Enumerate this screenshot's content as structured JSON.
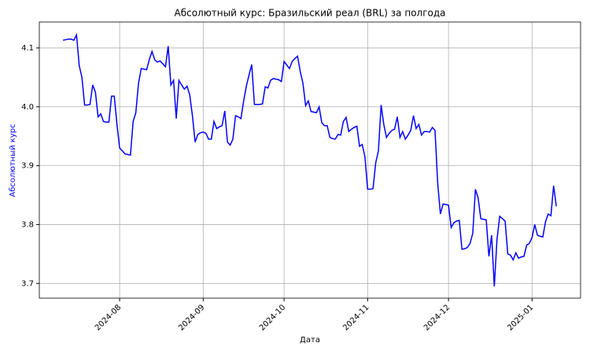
{
  "chart_data": {
    "type": "line",
    "title": "Абсолютный курс: Бразильский реал (BRL) за полгода",
    "xlabel": "Дата",
    "ylabel": "Абсолютный курс",
    "color": "#0000ff",
    "label_color": "#0000ff",
    "grid": true,
    "xlim": [
      -8.8,
      192
    ],
    "ylim": [
      3.675,
      4.144
    ],
    "xticks": [
      {
        "value": 21,
        "label": "2024-08"
      },
      {
        "value": 52,
        "label": "2024-09"
      },
      {
        "value": 82,
        "label": "2024-10"
      },
      {
        "value": 113,
        "label": "2024-11"
      },
      {
        "value": 143,
        "label": "2024-12"
      },
      {
        "value": 174,
        "label": "2025-01"
      }
    ],
    "yticks": [
      3.7,
      3.8,
      3.9,
      {
        "value": 4,
        "label": "4.0"
      },
      4.1
    ],
    "values": [
      4.113,
      4.114,
      4.115,
      4.115,
      4.113,
      4.122,
      4.07,
      4.05,
      4.003,
      4.003,
      4.004,
      4.037,
      4.025,
      3.983,
      3.988,
      3.975,
      3.974,
      3.974,
      4.018,
      4.018,
      3.97,
      3.93,
      3.925,
      3.92,
      3.919,
      3.918,
      3.975,
      3.99,
      4.04,
      4.065,
      4.064,
      4.063,
      4.08,
      4.094,
      4.08,
      4.076,
      4.078,
      4.073,
      4.068,
      4.103,
      4.037,
      4.045,
      3.98,
      4.045,
      4.037,
      4.03,
      4.035,
      4.02,
      3.985,
      3.94,
      3.953,
      3.956,
      3.957,
      3.955,
      3.945,
      3.945,
      3.975,
      3.963,
      3.966,
      3.968,
      3.993,
      3.94,
      3.935,
      3.945,
      3.985,
      3.983,
      3.98,
      4.01,
      4.035,
      4.054,
      4.072,
      4.004,
      4.004,
      4.004,
      4.005,
      4.034,
      4.032,
      4.045,
      4.048,
      4.047,
      4.046,
      4.043,
      4.077,
      4.071,
      4.065,
      4.077,
      4.082,
      4.086,
      4.06,
      4.04,
      4.002,
      4.01,
      3.992,
      3.991,
      3.99,
      4.0,
      3.973,
      3.968,
      3.968,
      3.948,
      3.946,
      3.945,
      3.953,
      3.952,
      3.975,
      3.982,
      3.958,
      3.962,
      3.965,
      3.967,
      3.933,
      3.936,
      3.915,
      3.86,
      3.86,
      3.861,
      3.905,
      3.925,
      4.003,
      3.97,
      3.948,
      3.955,
      3.96,
      3.962,
      3.983,
      3.948,
      3.958,
      3.945,
      3.952,
      3.96,
      3.985,
      3.963,
      3.97,
      3.952,
      3.958,
      3.958,
      3.957,
      3.965,
      3.96,
      3.87,
      3.818,
      3.835,
      3.834,
      3.833,
      3.795,
      3.803,
      3.806,
      3.807,
      3.758,
      3.759,
      3.761,
      3.768,
      3.785,
      3.86,
      3.845,
      3.81,
      3.809,
      3.808,
      3.746,
      3.782,
      3.695,
      3.775,
      3.814,
      3.81,
      3.806,
      3.75,
      3.748,
      3.74,
      3.752,
      3.743,
      3.745,
      3.746,
      3.765,
      3.768,
      3.778,
      3.8,
      3.782,
      3.78,
      3.779,
      3.805,
      3.818,
      3.815,
      3.866,
      3.831
    ]
  }
}
